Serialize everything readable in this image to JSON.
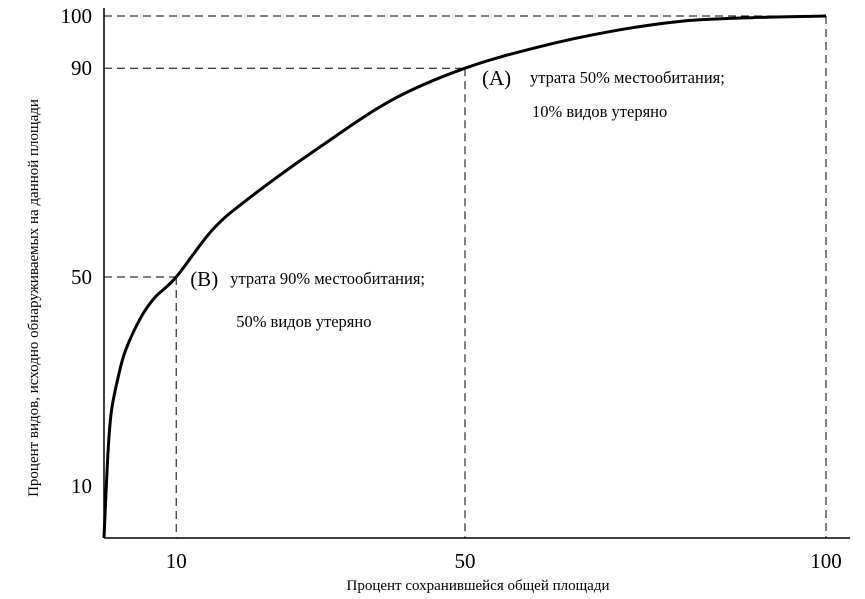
{
  "chart_data": {
    "type": "line",
    "xlabel": "Процент сохранившейся общей площади",
    "ylabel": "Процент видов, исходно обнаруживаемых на данной площади",
    "xlim": [
      0,
      100
    ],
    "ylim": [
      0,
      100
    ],
    "x_ticks": [
      "10",
      "50",
      "100"
    ],
    "y_ticks": [
      "10",
      "50",
      "90",
      "100"
    ],
    "grid": false,
    "series": [
      {
        "x": [
          0,
          0.5,
          1,
          2,
          3,
          5,
          7,
          10,
          15,
          20,
          30,
          40,
          50,
          60,
          70,
          80,
          90,
          100
        ],
        "y": [
          0,
          15,
          24,
          31,
          36,
          42,
          46,
          50,
          59,
          65,
          75,
          84,
          90,
          94,
          97,
          99,
          99.7,
          100
        ]
      }
    ],
    "annotations": [
      {
        "tag": "(A)",
        "line1": "утрата 50% местообитания;",
        "line2": "10% видов утеряно",
        "x": 50,
        "y": 90
      },
      {
        "tag": "(B)",
        "line1": "утрата 90% местообитания;",
        "line2": "50% видов утеряно",
        "x": 10,
        "y": 50
      }
    ],
    "colors": {
      "curve": "#000000",
      "guides": "#000000",
      "axes": "#000000"
    }
  }
}
